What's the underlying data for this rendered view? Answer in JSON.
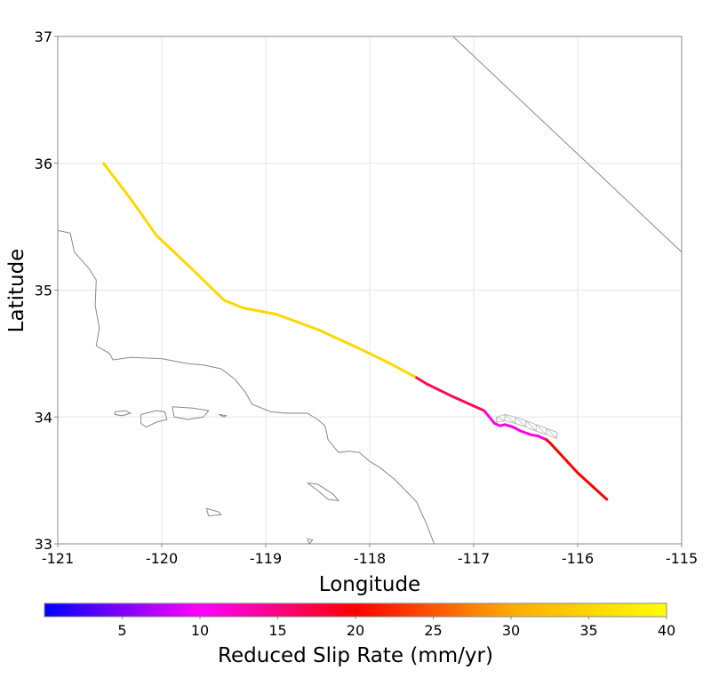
{
  "chart_data": {
    "type": "map",
    "xlabel": "Longitude",
    "ylabel": "Latitude",
    "xlim": [
      -121,
      -115
    ],
    "ylim": [
      33,
      37
    ],
    "xticks": [
      "-121",
      "-120",
      "-119",
      "-118",
      "-117",
      "-116",
      "-115"
    ],
    "yticks": [
      "33",
      "34",
      "35",
      "36",
      "37"
    ],
    "grid": true,
    "fault_segments": [
      {
        "slip_rate": 37,
        "color": "#ffd700",
        "points": [
          [
            -120.56,
            36.0
          ],
          [
            -120.3,
            35.72
          ],
          [
            -120.05,
            35.43
          ],
          [
            -119.7,
            35.16
          ],
          [
            -119.4,
            34.92
          ],
          [
            -119.22,
            34.86
          ],
          [
            -118.9,
            34.81
          ],
          [
            -118.5,
            34.69
          ],
          [
            -118.1,
            34.54
          ],
          [
            -117.8,
            34.42
          ],
          [
            -117.55,
            34.31
          ]
        ]
      },
      {
        "slip_rate": 18,
        "color": "#ff0a4a",
        "points": [
          [
            -117.55,
            34.31
          ],
          [
            -117.45,
            34.26
          ],
          [
            -117.2,
            34.16
          ],
          [
            -116.9,
            34.05
          ]
        ]
      },
      {
        "slip_rate": 12,
        "color": "#ff00e0",
        "points": [
          [
            -116.9,
            34.05
          ],
          [
            -116.85,
            34.0
          ],
          [
            -116.8,
            33.95
          ],
          [
            -116.75,
            33.93
          ],
          [
            -116.7,
            33.94
          ],
          [
            -116.62,
            33.92
          ],
          [
            -116.55,
            33.89
          ],
          [
            -116.45,
            33.86
          ],
          [
            -116.38,
            33.85
          ],
          [
            -116.3,
            33.82
          ]
        ]
      },
      {
        "slip_rate": 20,
        "color": "#ff0000",
        "points": [
          [
            -116.3,
            33.82
          ],
          [
            -116.26,
            33.79
          ],
          [
            -116.0,
            33.56
          ],
          [
            -115.72,
            33.35
          ]
        ]
      }
    ],
    "fault_surface_patch": {
      "color": "#bbbbbb",
      "top": [
        [
          -116.78,
          34.0
        ],
        [
          -116.7,
          34.02
        ],
        [
          -116.6,
          34.0
        ],
        [
          -116.5,
          33.97
        ],
        [
          -116.4,
          33.94
        ],
        [
          -116.3,
          33.91
        ],
        [
          -116.2,
          33.88
        ]
      ],
      "bottom": [
        [
          -116.78,
          33.96
        ],
        [
          -116.7,
          33.97
        ],
        [
          -116.6,
          33.95
        ],
        [
          -116.5,
          33.92
        ],
        [
          -116.4,
          33.89
        ],
        [
          -116.3,
          33.86
        ],
        [
          -116.2,
          33.83
        ]
      ]
    },
    "boundary_line": {
      "color": "#888888",
      "points": [
        [
          -117.2,
          37.0
        ],
        [
          -115.0,
          35.3
        ]
      ]
    },
    "coastline": {
      "color": "#888888",
      "mainland": [
        [
          -121.0,
          35.47
        ],
        [
          -120.88,
          35.45
        ],
        [
          -120.84,
          35.3
        ],
        [
          -120.7,
          35.17
        ],
        [
          -120.63,
          35.08
        ],
        [
          -120.64,
          34.88
        ],
        [
          -120.6,
          34.7
        ],
        [
          -120.63,
          34.56
        ],
        [
          -120.5,
          34.5
        ],
        [
          -120.47,
          34.45
        ],
        [
          -120.3,
          34.47
        ],
        [
          -120.0,
          34.46
        ],
        [
          -119.75,
          34.42
        ],
        [
          -119.6,
          34.41
        ],
        [
          -119.43,
          34.38
        ],
        [
          -119.3,
          34.3
        ],
        [
          -119.2,
          34.2
        ],
        [
          -119.13,
          34.1
        ],
        [
          -118.95,
          34.04
        ],
        [
          -118.8,
          34.03
        ],
        [
          -118.6,
          34.03
        ],
        [
          -118.5,
          33.98
        ],
        [
          -118.43,
          33.93
        ],
        [
          -118.4,
          33.82
        ],
        [
          -118.3,
          33.72
        ],
        [
          -118.2,
          33.73
        ],
        [
          -118.1,
          33.72
        ],
        [
          -118.0,
          33.65
        ],
        [
          -117.9,
          33.6
        ],
        [
          -117.75,
          33.5
        ],
        [
          -117.55,
          33.33
        ],
        [
          -117.45,
          33.15
        ],
        [
          -117.38,
          33.0
        ]
      ],
      "islands": [
        [
          [
            -120.45,
            34.04
          ],
          [
            -120.35,
            34.05
          ],
          [
            -120.3,
            34.03
          ],
          [
            -120.38,
            34.01
          ],
          [
            -120.45,
            34.02
          ],
          [
            -120.45,
            34.04
          ]
        ],
        [
          [
            -120.2,
            34.02
          ],
          [
            -120.05,
            34.05
          ],
          [
            -119.97,
            34.04
          ],
          [
            -119.95,
            33.98
          ],
          [
            -120.05,
            33.96
          ],
          [
            -120.15,
            33.92
          ],
          [
            -120.2,
            33.95
          ],
          [
            -120.2,
            34.02
          ]
        ],
        [
          [
            -119.9,
            34.08
          ],
          [
            -119.7,
            34.07
          ],
          [
            -119.55,
            34.05
          ],
          [
            -119.6,
            34.0
          ],
          [
            -119.75,
            33.98
          ],
          [
            -119.88,
            34.0
          ],
          [
            -119.9,
            34.08
          ]
        ],
        [
          [
            -119.45,
            34.02
          ],
          [
            -119.38,
            34.01
          ],
          [
            -119.4,
            34.0
          ],
          [
            -119.45,
            34.02
          ]
        ],
        [
          [
            -118.6,
            33.48
          ],
          [
            -118.5,
            33.47
          ],
          [
            -118.35,
            33.39
          ],
          [
            -118.3,
            33.34
          ],
          [
            -118.4,
            33.35
          ],
          [
            -118.5,
            33.42
          ],
          [
            -118.6,
            33.48
          ]
        ],
        [
          [
            -119.57,
            33.28
          ],
          [
            -119.45,
            33.25
          ],
          [
            -119.43,
            33.23
          ],
          [
            -119.55,
            33.22
          ],
          [
            -119.57,
            33.28
          ]
        ],
        [
          [
            -118.6,
            33.04
          ],
          [
            -118.55,
            33.03
          ],
          [
            -118.58,
            33.0
          ],
          [
            -118.6,
            33.04
          ]
        ]
      ]
    },
    "colorbar": {
      "title": "Reduced Slip Rate (mm/yr)",
      "min": 0,
      "max": 40,
      "ticks": [
        "5",
        "10",
        "15",
        "20",
        "25",
        "30",
        "35",
        "40"
      ],
      "stops": [
        {
          "value": 0,
          "color": "#0000ff"
        },
        {
          "value": 10,
          "color": "#ff00ff"
        },
        {
          "value": 20,
          "color": "#ff0000"
        },
        {
          "value": 30,
          "color": "#ffaa00"
        },
        {
          "value": 40,
          "color": "#ffff00"
        }
      ]
    }
  }
}
